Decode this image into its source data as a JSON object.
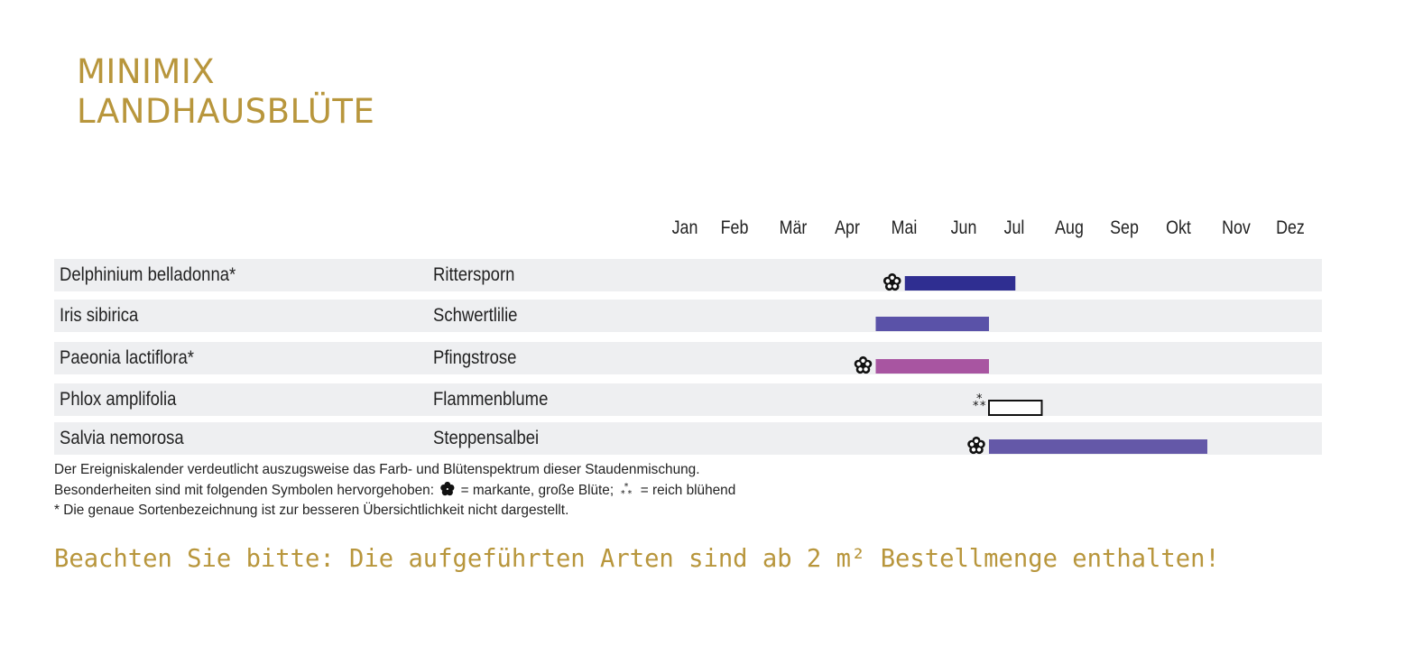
{
  "title_line1": "MINIMIX",
  "title_line2": "LANDHAUSBLÜTE",
  "colors": {
    "accent": "#b8963c",
    "row_bg": "#eeeff1",
    "delphinium": "#2f2e91",
    "iris": "#5a52a8",
    "paeonia": "#a855a1",
    "phlox": "#ffffff",
    "salvia": "#6458a8"
  },
  "chart_data": {
    "type": "gantt",
    "months": [
      "Jan",
      "Feb",
      "Mär",
      "Apr",
      "Mai",
      "Jun",
      "Jul",
      "Aug",
      "Sep",
      "Okt",
      "Nov",
      "Dez"
    ],
    "rows": [
      {
        "latin": "Delphinium belladonna*",
        "german": "Rittersporn",
        "start": 5.5,
        "end": 7.5,
        "color": "#2f2e91",
        "symbol": "markant"
      },
      {
        "latin": "Iris sibirica",
        "german": "Schwertlilie",
        "start": 5.0,
        "end": 7.0,
        "color": "#5a52a8",
        "symbol": ""
      },
      {
        "latin": "Paeonia lactiflora*",
        "german": "Pfingstrose",
        "start": 5.0,
        "end": 7.0,
        "color": "#a855a1",
        "symbol": "markant"
      },
      {
        "latin": "Phlox amplifolia",
        "german": "Flammenblume",
        "start": 7.0,
        "end": 8.0,
        "color": "#ffffff",
        "symbol": "reich"
      },
      {
        "latin": "Salvia nemorosa",
        "german": "Steppensalbei",
        "start": 7.0,
        "end": 11.0,
        "color": "#6458a8",
        "symbol": "markant"
      }
    ]
  },
  "notes": {
    "line1": "Der Ereigniskalender verdeutlicht auszugsweise das Farb- und Blütenspektrum dieser Staudenmischung.",
    "line2_prefix": "Besonderheiten sind mit folgenden Symbolen hervorgehoben:",
    "line2_markant": "= markante, große Blüte;",
    "line2_reich": "= reich blühend",
    "line3": "*  Die genaue Sortenbezeichnung ist zur besseren Übersichtlichkeit nicht dargestellt."
  },
  "notice": "Beachten Sie bitte: Die aufgeführten Arten sind ab 2 m² Bestellmenge enthalten!"
}
